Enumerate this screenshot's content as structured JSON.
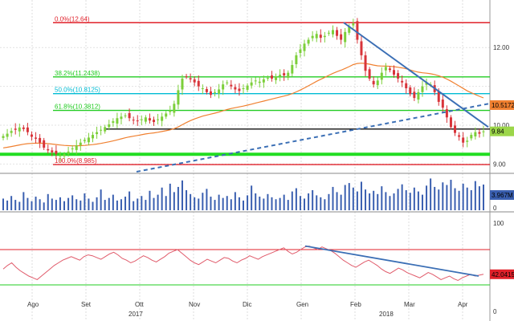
{
  "chart_data": {
    "type": "candlestick",
    "x_months": [
      "Ago",
      "Set",
      "Ott",
      "Nov",
      "Dic",
      "Gen",
      "Feb",
      "Mar",
      "Apr"
    ],
    "x_years": [
      "2017",
      "2018"
    ],
    "price_panel": {
      "y_ticks": [
        9.0,
        10.0,
        11.0,
        12.0
      ],
      "y_tick_labels": [
        "9.00",
        "10.00",
        "",
        "12.00"
      ],
      "ylim": [
        8.8,
        13.1
      ],
      "fib_levels": [
        {
          "label": "0.0%(12.64)",
          "value": 12.64,
          "color": "#e0202a"
        },
        {
          "label": "38.2%(11.2438)",
          "value": 11.2438,
          "color": "#22cc22"
        },
        {
          "label": "50.0%(10.8125)",
          "value": 10.8125,
          "color": "#00bcd4"
        },
        {
          "label": "61.8%(10.3812)",
          "value": 10.3812,
          "color": "#22cc22"
        },
        {
          "label": "100.0%(8.985)",
          "value": 8.985,
          "color": "#e0202a"
        }
      ],
      "horizontal_support": 9.9,
      "green_band": 9.25,
      "last_price": {
        "value": 9.84,
        "label": "9.84",
        "color": "#9cd64a"
      },
      "moving_average_last": {
        "value": 10.5172,
        "label": "10.5172",
        "color": "#f08030"
      },
      "closes": [
        9.72,
        9.78,
        9.85,
        9.88,
        9.94,
        9.9,
        9.82,
        9.7,
        9.65,
        9.55,
        9.42,
        9.35,
        9.3,
        9.26,
        9.22,
        9.25,
        9.32,
        9.4,
        9.48,
        9.55,
        9.62,
        9.68,
        9.75,
        9.82,
        9.88,
        9.95,
        10.02,
        10.1,
        10.18,
        10.22,
        10.25,
        10.18,
        10.12,
        10.1,
        10.15,
        10.2,
        10.12,
        10.08,
        10.15,
        10.22,
        10.3,
        10.38,
        10.55,
        10.9,
        11.2,
        11.25,
        11.18,
        11.1,
        11.0,
        10.95,
        10.85,
        10.78,
        10.85,
        10.92,
        11.05,
        11.1,
        11.0,
        10.92,
        10.88,
        10.95,
        11.02,
        11.1,
        11.15,
        11.12,
        11.18,
        11.22,
        11.2,
        11.25,
        11.3,
        11.28,
        11.35,
        11.55,
        11.8,
        11.95,
        12.1,
        12.2,
        12.3,
        12.35,
        12.25,
        12.3,
        12.38,
        12.45,
        12.3,
        12.2,
        12.4,
        12.55,
        12.62,
        12.2,
        11.8,
        11.4,
        11.2,
        11.05,
        11.15,
        11.35,
        11.5,
        11.42,
        11.3,
        11.2,
        11.1,
        10.95,
        10.8,
        10.7,
        10.85,
        11.0,
        11.1,
        11.05,
        10.85,
        10.6,
        10.45,
        10.2,
        9.95,
        9.8,
        9.7,
        9.55,
        9.6,
        9.75,
        9.82,
        9.78,
        9.84
      ]
    },
    "volume_panel": {
      "y_ticks": [
        0
      ],
      "y_tick_labels": [
        "0"
      ],
      "last_value": {
        "value": 3.967,
        "label": "3.967M",
        "color": "#3a5fb0"
      },
      "values": [
        1.8,
        1.5,
        2.2,
        1.6,
        1.3,
        2.8,
        1.9,
        1.4,
        2.1,
        1.7,
        1.2,
        2.5,
        1.8,
        1.6,
        2.0,
        1.4,
        1.9,
        2.3,
        1.7,
        1.5,
        2.6,
        1.8,
        1.3,
        2.0,
        3.2,
        1.6,
        1.9,
        2.4,
        1.5,
        1.7,
        2.1,
        2.9,
        1.4,
        1.8,
        2.2,
        1.6,
        3.0,
        1.9,
        2.4,
        3.5,
        2.2,
        4.1,
        2.8,
        3.6,
        4.6,
        3.1,
        2.5,
        2.0,
        1.8,
        2.7,
        3.3,
        2.1,
        1.6,
        2.4,
        1.9,
        2.2,
        1.7,
        2.8,
        2.0,
        1.5,
        2.3,
        3.8,
        2.6,
        2.1,
        1.8,
        2.5,
        2.0,
        1.7,
        1.9,
        2.4,
        1.6,
        2.9,
        3.4,
        2.2,
        1.8,
        2.6,
        3.1,
        2.3,
        2.0,
        1.7,
        2.5,
        3.6,
        2.8,
        2.4,
        3.9,
        4.2,
        3.5,
        2.9,
        4.4,
        3.2,
        2.6,
        3.0,
        2.5,
        3.7,
        2.8,
        2.2,
        2.6,
        3.3,
        4.0,
        3.1,
        2.7,
        3.5,
        2.9,
        2.4,
        3.8,
        4.9,
        3.6,
        3.2,
        4.3,
        3.9,
        4.7,
        3.4,
        3.0,
        4.1,
        3.5,
        3.1,
        4.5,
        3.7,
        3.967
      ]
    },
    "rsi_panel": {
      "y_ticks": [
        0,
        100
      ],
      "y_tick_labels": [
        "0",
        "100"
      ],
      "ylim": [
        0,
        100
      ],
      "overbought": 70,
      "oversold": 30,
      "last_value": {
        "value": 42.0415,
        "label": "42.0415",
        "color": "#e0202a"
      },
      "values": [
        48,
        52,
        55,
        50,
        46,
        43,
        40,
        38,
        36,
        40,
        44,
        48,
        52,
        55,
        58,
        60,
        62,
        60,
        58,
        62,
        64,
        63,
        61,
        59,
        62,
        65,
        67,
        64,
        60,
        58,
        55,
        57,
        60,
        63,
        61,
        58,
        56,
        59,
        62,
        66,
        68,
        70,
        66,
        62,
        58,
        55,
        53,
        56,
        59,
        57,
        55,
        58,
        61,
        60,
        57,
        55,
        58,
        60,
        63,
        61,
        59,
        62,
        64,
        66,
        68,
        70,
        72,
        68,
        65,
        67,
        70,
        73,
        74,
        72,
        70,
        73,
        71,
        69,
        66,
        62,
        58,
        55,
        52,
        50,
        53,
        56,
        58,
        55,
        52,
        48,
        45,
        43,
        46,
        49,
        47,
        44,
        42,
        40,
        38,
        41,
        44,
        42,
        39,
        36,
        38,
        40,
        37,
        35,
        38,
        40,
        42,
        40,
        41,
        42.0415
      ]
    }
  }
}
